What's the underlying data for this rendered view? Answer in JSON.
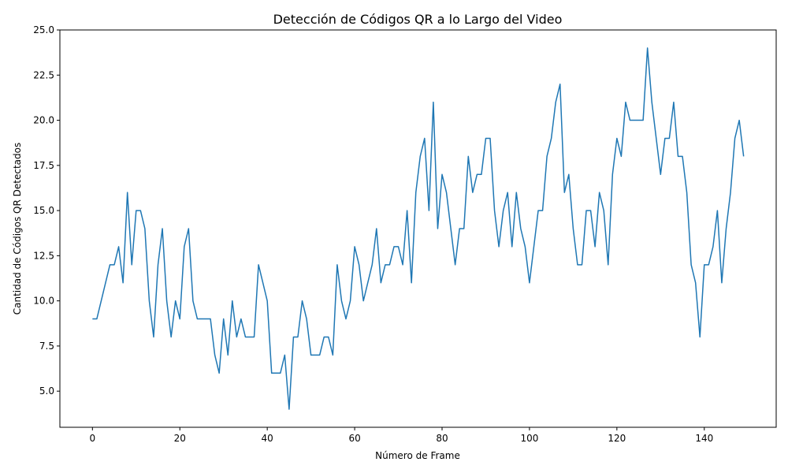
{
  "chart_data": {
    "type": "line",
    "title": "Detección de Códigos QR a lo Largo del Video",
    "xlabel": "Número de Frame",
    "ylabel": "Cantidad de Códigos QR Detectados",
    "xlim": [
      -7.45,
      156.45
    ],
    "ylim": [
      3.0,
      25.0
    ],
    "xticks": [
      0,
      20,
      40,
      60,
      80,
      100,
      120,
      140
    ],
    "xtick_labels": [
      "0",
      "20",
      "40",
      "60",
      "80",
      "100",
      "120",
      "140"
    ],
    "yticks": [
      5.0,
      7.5,
      10.0,
      12.5,
      15.0,
      17.5,
      20.0,
      22.5,
      25.0
    ],
    "ytick_labels": [
      "5.0",
      "7.5",
      "10.0",
      "12.5",
      "15.0",
      "17.5",
      "20.0",
      "22.5",
      "25.0"
    ],
    "grid": false,
    "series": [
      {
        "color": "#1f77b4",
        "x": [
          0,
          1,
          2,
          3,
          4,
          5,
          6,
          7,
          8,
          9,
          10,
          11,
          12,
          13,
          14,
          15,
          16,
          17,
          18,
          19,
          20,
          21,
          22,
          23,
          24,
          25,
          26,
          27,
          28,
          29,
          30,
          31,
          32,
          33,
          34,
          35,
          36,
          37,
          38,
          39,
          40,
          41,
          42,
          43,
          44,
          45,
          46,
          47,
          48,
          49,
          50,
          51,
          52,
          53,
          54,
          55,
          56,
          57,
          58,
          59,
          60,
          61,
          62,
          63,
          64,
          65,
          66,
          67,
          68,
          69,
          70,
          71,
          72,
          73,
          74,
          75,
          76,
          77,
          78,
          79,
          80,
          81,
          82,
          83,
          84,
          85,
          86,
          87,
          88,
          89,
          90,
          91,
          92,
          93,
          94,
          95,
          96,
          97,
          98,
          99,
          100,
          101,
          102,
          103,
          104,
          105,
          106,
          107,
          108,
          109,
          110,
          111,
          112,
          113,
          114,
          115,
          116,
          117,
          118,
          119,
          120,
          121,
          122,
          123,
          124,
          125,
          126,
          127,
          128,
          129,
          130,
          131,
          132,
          133,
          134,
          135,
          136,
          137,
          138,
          139,
          140,
          141,
          142,
          143,
          144,
          145,
          146,
          147,
          148,
          149
        ],
        "values": [
          9,
          9,
          10,
          11,
          12,
          12,
          13,
          11,
          16,
          12,
          15,
          15,
          14,
          10,
          8,
          12,
          14,
          10,
          8,
          10,
          9,
          13,
          14,
          10,
          9,
          9,
          9,
          9,
          7,
          6,
          9,
          7,
          10,
          8,
          9,
          8,
          8,
          8,
          12,
          11,
          10,
          6,
          6,
          6,
          7,
          4,
          8,
          8,
          10,
          9,
          7,
          7,
          7,
          8,
          8,
          7,
          12,
          10,
          9,
          10,
          13,
          12,
          10,
          11,
          12,
          14,
          11,
          12,
          12,
          13,
          13,
          12,
          15,
          11,
          16,
          18,
          19,
          15,
          21,
          14,
          17,
          16,
          14,
          12,
          14,
          14,
          18,
          16,
          17,
          17,
          19,
          19,
          15,
          13,
          15,
          16,
          13,
          16,
          14,
          13,
          11,
          13,
          15,
          15,
          18,
          19,
          21,
          22,
          16,
          17,
          14,
          12,
          12,
          15,
          15,
          13,
          16,
          15,
          12,
          17,
          19,
          18,
          21,
          20,
          20,
          20,
          20,
          24,
          21,
          19,
          17,
          19,
          19,
          21,
          18,
          18,
          16,
          12,
          11,
          8,
          12,
          12,
          13,
          15,
          11,
          14,
          16,
          19,
          20,
          18
        ]
      }
    ]
  }
}
